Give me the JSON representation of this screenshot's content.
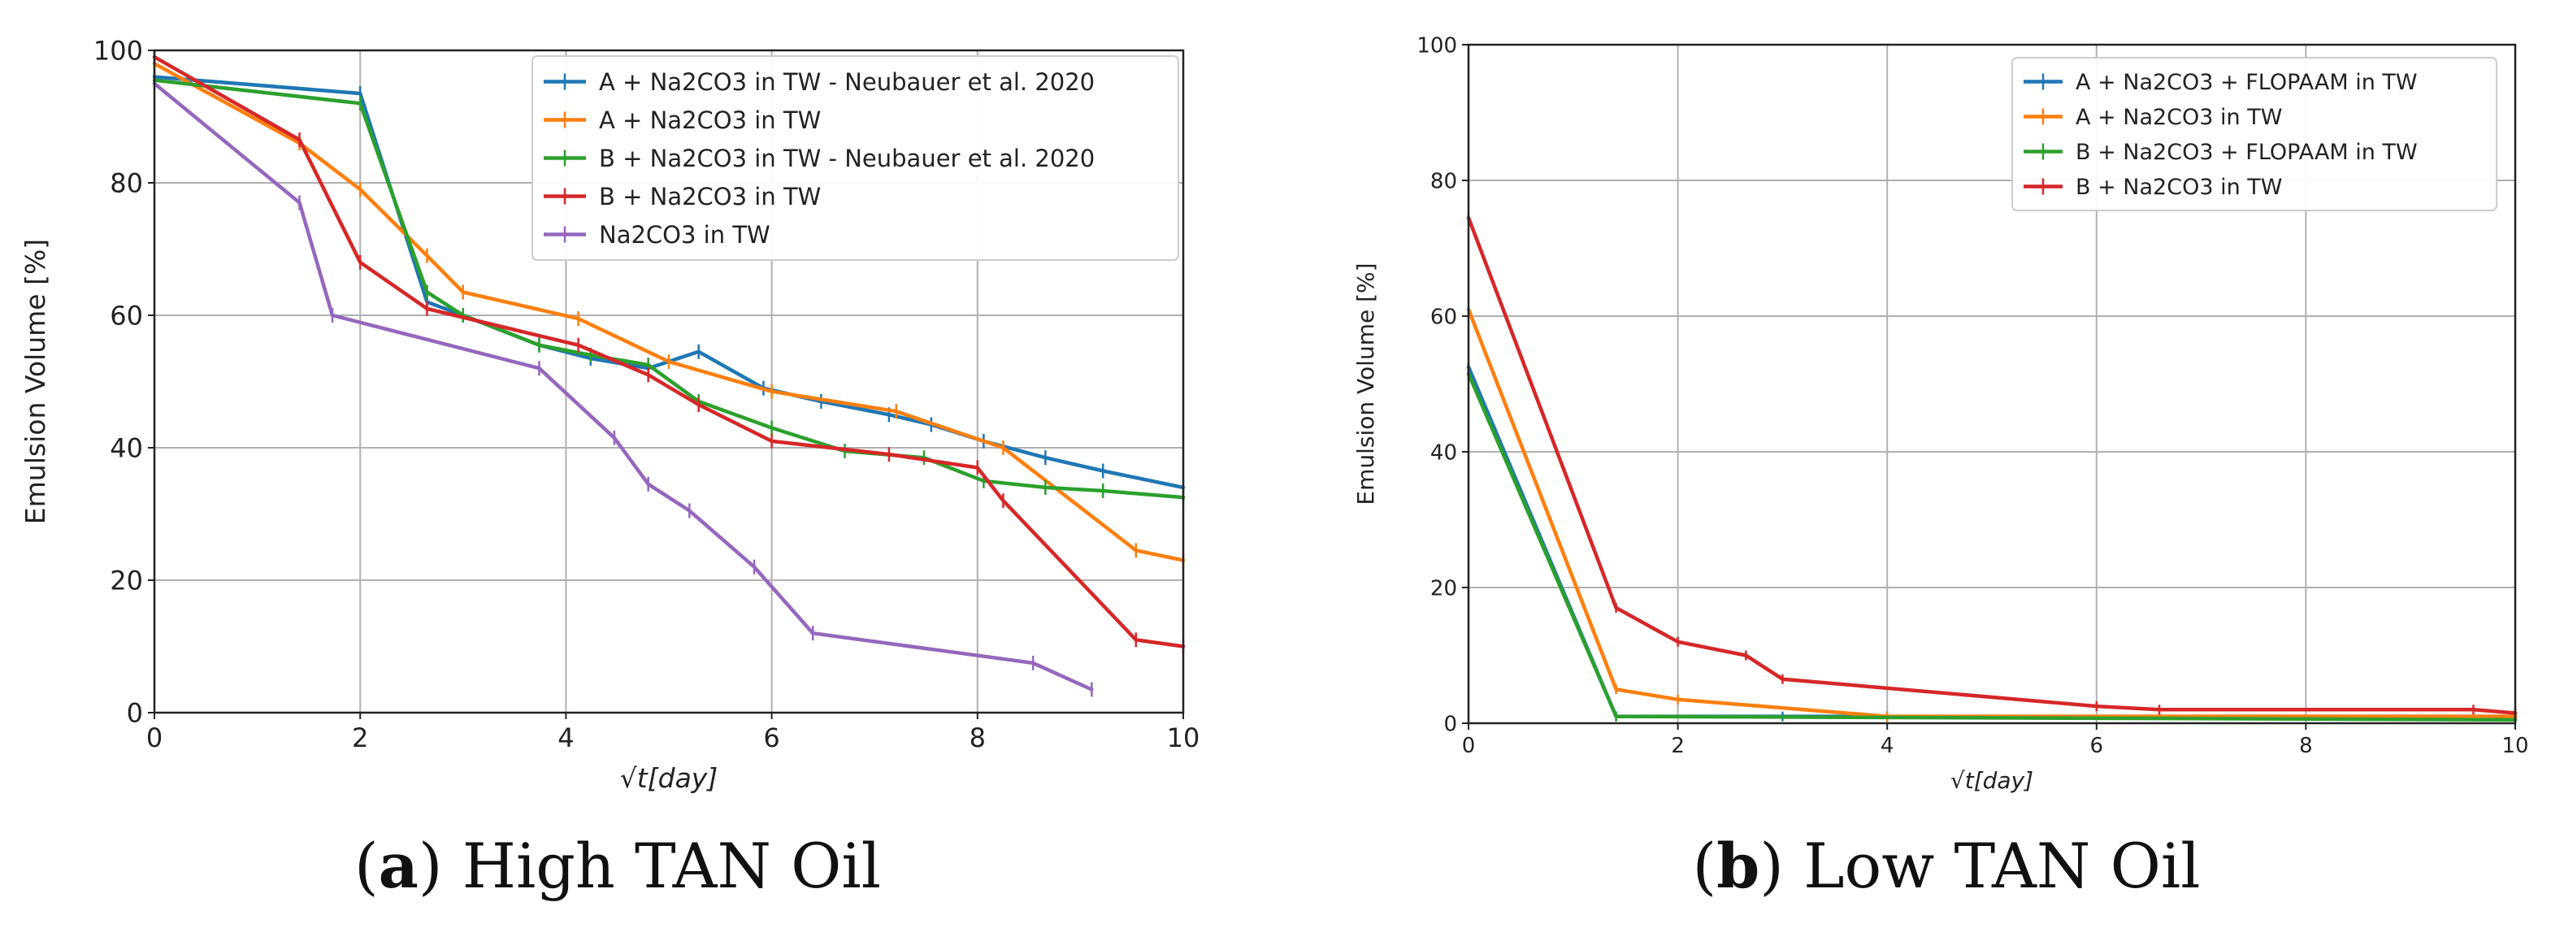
{
  "figure": {
    "captions": [
      {
        "label": "a",
        "text": " High TAN Oil"
      },
      {
        "label": "b",
        "text": " Low TAN Oil"
      }
    ]
  },
  "chart_data": [
    {
      "type": "line",
      "panel": "a",
      "title": "",
      "xlabel": "√t[day]",
      "ylabel": "Emulsion Volume [%]",
      "xlim": [
        0,
        10
      ],
      "ylim": [
        0,
        100
      ],
      "xticks": [
        "0",
        "2",
        "4",
        "6",
        "8",
        "10"
      ],
      "yticks": [
        "0",
        "20",
        "40",
        "60",
        "80",
        "100"
      ],
      "grid": true,
      "legend_position": "top-right",
      "series": [
        {
          "name": "A + Na2CO3 in TW - Neubauer et al. 2020",
          "color": "#1f77b4",
          "x": [
            0,
            2,
            2.65,
            3,
            3.74,
            4.24,
            4.8,
            5.29,
            5.92,
            6.48,
            7.14,
            7.55,
            8.06,
            8.66,
            9.22,
            10
          ],
          "y": [
            96,
            93.5,
            62,
            60,
            55.5,
            53.5,
            52,
            54.5,
            49,
            47,
            45,
            43.5,
            41,
            38.5,
            36.5,
            34
          ]
        },
        {
          "name": "A + Na2CO3 in TW",
          "color": "#ff7f0e",
          "x": [
            0,
            1.41,
            2,
            2.65,
            3,
            4.12,
            5,
            6,
            7.21,
            8.25,
            9.54,
            10
          ],
          "y": [
            98,
            86,
            79,
            69,
            63.5,
            59.5,
            53,
            48.5,
            45.5,
            40,
            24.5,
            23
          ]
        },
        {
          "name": "B + Na2CO3 in TW - Neubauer et al. 2020",
          "color": "#2ca02c",
          "x": [
            0,
            2,
            2.65,
            3,
            3.74,
            4.24,
            4.8,
            5.29,
            6,
            6.71,
            7.48,
            8.06,
            8.66,
            9.22,
            10
          ],
          "y": [
            95.5,
            92,
            63.5,
            60,
            55.5,
            54,
            52.5,
            47,
            43,
            39.5,
            38.5,
            35,
            34,
            33.5,
            32.5
          ]
        },
        {
          "name": "B + Na2CO3 in TW",
          "color": "#d62728",
          "x": [
            0,
            1.41,
            2,
            2.65,
            4.12,
            4.8,
            5.29,
            6,
            7.14,
            8,
            8.25,
            9.54,
            10
          ],
          "y": [
            99,
            86.5,
            68,
            61,
            55.5,
            51,
            46.5,
            41,
            39,
            37,
            32,
            11,
            10
          ]
        },
        {
          "name": "Na2CO3 in TW",
          "color": "#9467bd",
          "x": [
            0,
            1.41,
            1.73,
            3.74,
            4.47,
            4.8,
            5.2,
            5.83,
            6.4,
            8.54,
            9.11
          ],
          "y": [
            95,
            77,
            60,
            52,
            41.5,
            34.5,
            30.5,
            22,
            12,
            7.5,
            3.5
          ]
        }
      ]
    },
    {
      "type": "line",
      "panel": "b",
      "title": "",
      "xlabel": "√t[day]",
      "ylabel": "Emulsion Volume [%]",
      "xlim": [
        0,
        10
      ],
      "ylim": [
        0,
        100
      ],
      "xticks": [
        "0",
        "2",
        "4",
        "6",
        "8",
        "10"
      ],
      "yticks": [
        "0",
        "20",
        "40",
        "60",
        "80",
        "100"
      ],
      "grid": true,
      "legend_position": "top-right",
      "series": [
        {
          "name": "A + Na2CO3  + FLOPAAM in TW",
          "color": "#1f77b4",
          "x": [
            0,
            1.41,
            3,
            4,
            10
          ],
          "y": [
            52.5,
            1,
            1,
            1,
            1
          ]
        },
        {
          "name": "A + Na2CO3 in TW",
          "color": "#ff7f0e",
          "x": [
            0,
            1.41,
            2,
            4,
            10
          ],
          "y": [
            61,
            5,
            3.5,
            1,
            1
          ]
        },
        {
          "name": "B + Na2CO3  + FLOPAAM in TW",
          "color": "#2ca02c",
          "x": [
            0,
            1.41,
            10
          ],
          "y": [
            51.5,
            1,
            0.5
          ]
        },
        {
          "name": "B + Na2CO3 in TW",
          "color": "#d62728",
          "x": [
            0,
            1.41,
            2,
            2.65,
            3,
            6,
            6.6,
            9.6,
            10
          ],
          "y": [
            74.5,
            17,
            12,
            10,
            6.5,
            2.5,
            2,
            2,
            1.5
          ]
        }
      ]
    }
  ]
}
